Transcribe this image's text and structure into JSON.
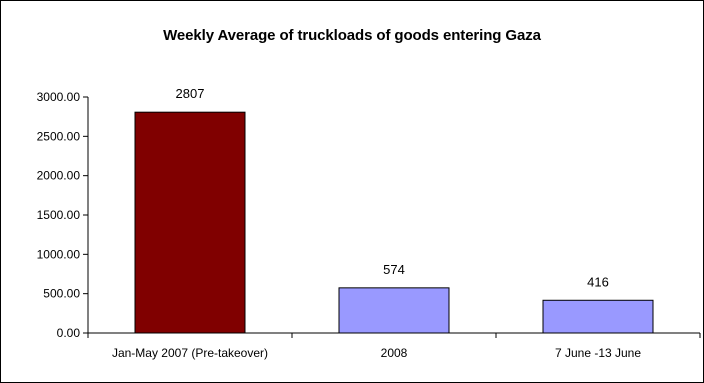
{
  "chart_data": {
    "type": "bar",
    "title": "Weekly Average of truckloads of goods entering Gaza",
    "xlabel": "",
    "ylabel": "",
    "categories": [
      "Jan-May 2007 (Pre-takeover)",
      "2008",
      "7 June -13 June"
    ],
    "values": [
      2807,
      574,
      416
    ],
    "data_labels": [
      "2807",
      "574",
      "416"
    ],
    "bar_colors": [
      "#800000",
      "#9999ff",
      "#9999ff"
    ],
    "ylim": [
      0,
      3000
    ],
    "yticks": [
      0,
      500,
      1000,
      1500,
      2000,
      2500,
      3000
    ],
    "ytick_labels": [
      "0.00",
      "500.00",
      "1000.00",
      "1500.00",
      "2000.00",
      "2500.00",
      "3000.00"
    ],
    "grid": false,
    "legend": "none"
  }
}
